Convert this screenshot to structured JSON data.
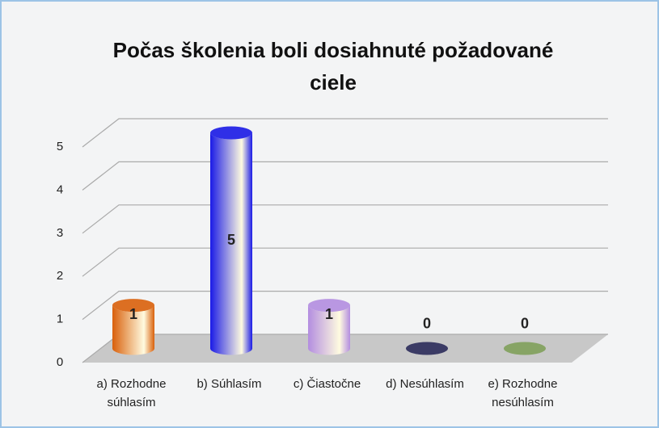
{
  "chart_data": {
    "type": "bar3d-cylinder",
    "title": "Počas školenia boli dosiahnuté požadované ciele",
    "categories": [
      "a) Rozhodne súhlasím",
      "b) Súhlasím",
      "c) Čiastočne",
      "d) Nesúhlasím",
      "e) Rozhodne nesúhlasím"
    ],
    "values": [
      1,
      5,
      1,
      0,
      0
    ],
    "colors": [
      "#d9600b",
      "#1a1ae6",
      "#b38de0",
      "#2b2b5a",
      "#7fa05a"
    ],
    "ylim": [
      0,
      5
    ],
    "yticks": [
      0,
      1,
      2,
      3,
      4,
      5
    ],
    "grid": true
  }
}
